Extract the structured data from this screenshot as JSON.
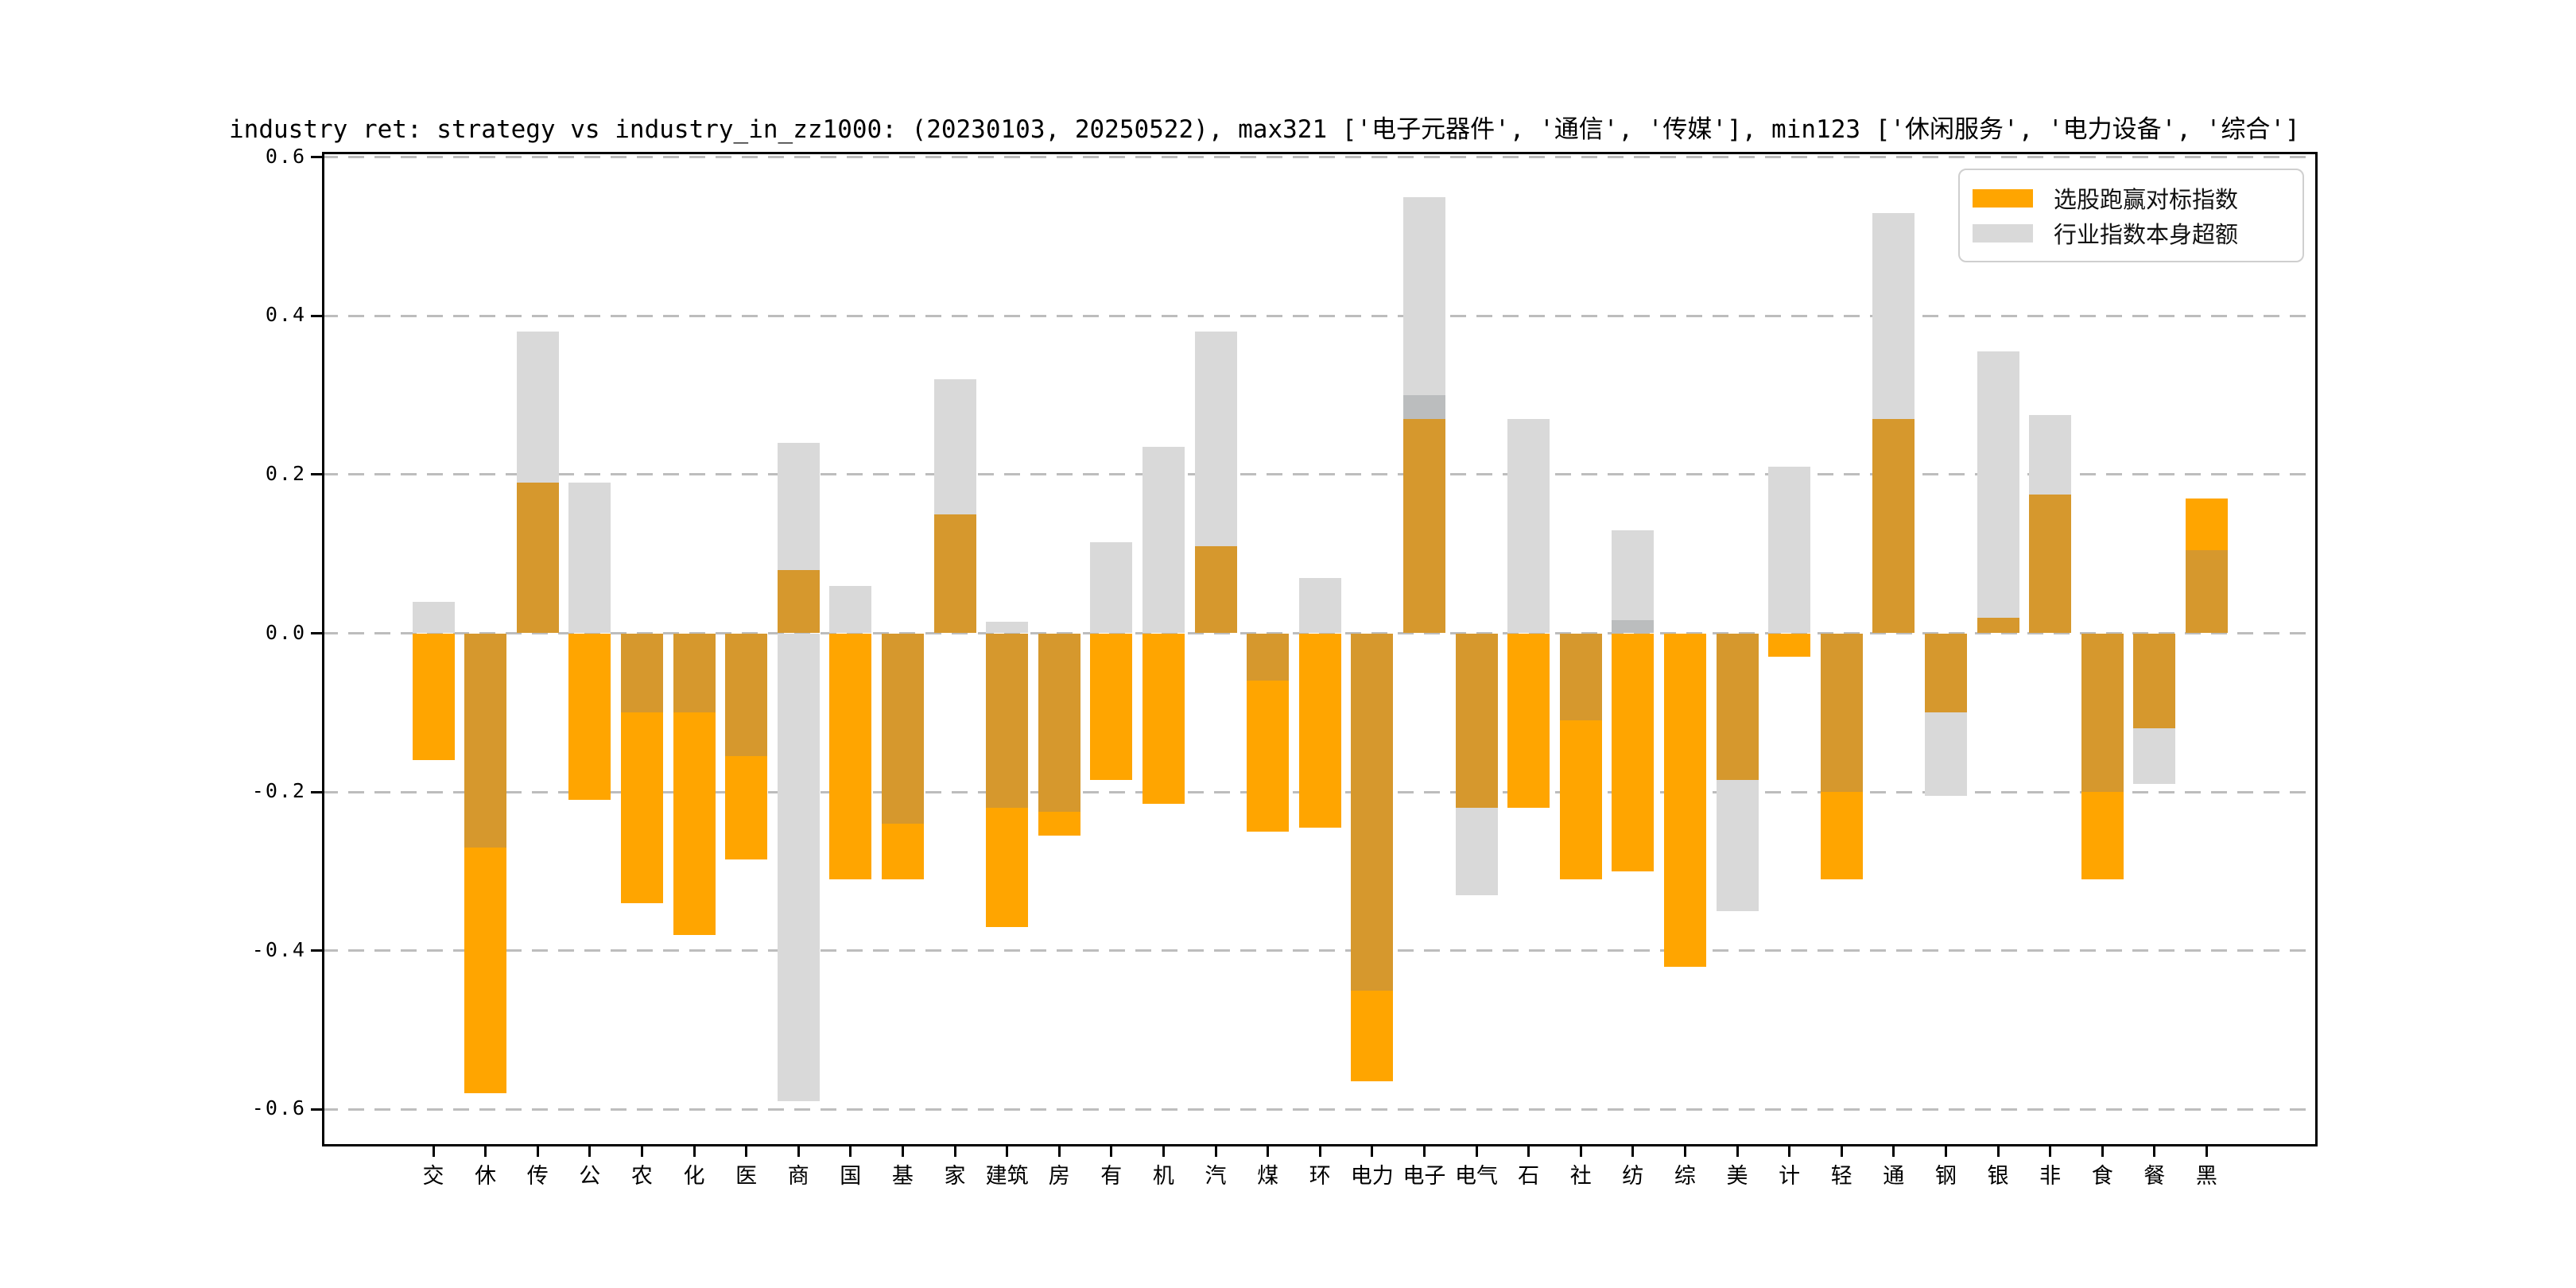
{
  "title": "industry ret: strategy vs industry_in_zz1000: (20230103, 20250522), max321 ['电子元器件', '通信', '传媒'], min123 ['休闲服务', '电力设备', '综合']",
  "legend": {
    "items": [
      {
        "label": "选股跑赢对标指数",
        "color": "#FFA500"
      },
      {
        "label": "行业指数本身超额",
        "color": "#D9D9D9"
      }
    ]
  },
  "colors": {
    "orange": "#FFA500",
    "gray": "#D9D9D9",
    "orange_over_gray": "#D6982D",
    "gray_over_gray": "#BBBDBE",
    "grid": "#BDBDBD",
    "spine": "#000000",
    "background": "#FFFFFF"
  },
  "chart_data": {
    "type": "bar",
    "title": "industry ret: strategy vs industry_in_zz1000: (20230103, 20250522), max321 ['电子元器件', '通信', '传媒'], min123 ['休闲服务', '电力设备', '综合']",
    "xlabel": "",
    "ylabel": "",
    "ylim": [
      -0.647,
      0.607
    ],
    "yticks": [
      0.6,
      0.4,
      0.2,
      0.0,
      -0.2,
      -0.4,
      -0.6
    ],
    "grid": "dashed-horizontal",
    "legend_position": "upper right",
    "bar_style": "overlapped-translucent",
    "categories": [
      "交",
      "休",
      "传",
      "公",
      "农",
      "化",
      "医",
      "商",
      "国",
      "基",
      "家",
      "建筑",
      "房",
      "有",
      "机",
      "汽",
      "煤",
      "环",
      "电力",
      "电子",
      "电气",
      "石",
      "社",
      "纺",
      "综",
      "美",
      "计",
      "轻",
      "通",
      "钢",
      "银",
      "非",
      "食",
      "餐",
      "黑"
    ],
    "series": [
      {
        "name": "选股跑赢对标指数",
        "role": "orange",
        "color": "#FFA500",
        "values": [
          -0.16,
          -0.58,
          0.19,
          -0.21,
          -0.34,
          -0.38,
          -0.285,
          0.08,
          -0.31,
          -0.31,
          0.15,
          -0.37,
          -0.255,
          -0.185,
          -0.215,
          0.11,
          -0.25,
          -0.245,
          -0.565,
          0.27,
          -0.22,
          -0.22,
          -0.31,
          -0.3,
          -0.42,
          -0.185,
          -0.03,
          -0.31,
          0.27,
          -0.1,
          0.02,
          0.175,
          -0.31,
          -0.12,
          0.17
        ]
      },
      {
        "name": "行业指数本身超额",
        "role": "gray",
        "color": "#D9D9D9",
        "values": [
          0.04,
          -0.27,
          0.38,
          0.19,
          -0.1,
          -0.1,
          -0.155,
          0.24,
          0.06,
          -0.24,
          0.32,
          -0.22,
          -0.225,
          0.115,
          0.235,
          0.38,
          -0.06,
          0.07,
          -0.45,
          0.55,
          -0.33,
          0.27,
          -0.11,
          0.13,
          0,
          -0.35,
          0.21,
          -0.2,
          0.53,
          -0.205,
          0.355,
          0.275,
          -0.2,
          -0.19,
          0.105
        ]
      },
      {
        "name": "行业指数本身超额(第二段)",
        "role": "gray-secondary",
        "color": "#D9D9D9",
        "values": [
          0,
          0,
          0,
          0,
          0,
          0,
          0,
          -0.59,
          0,
          0,
          0,
          0.015,
          0,
          0,
          0,
          0,
          0,
          0,
          0,
          0.3,
          0,
          0,
          0,
          0.017,
          0,
          0,
          0,
          0,
          0,
          0,
          0,
          0,
          0,
          0,
          0
        ]
      }
    ]
  }
}
